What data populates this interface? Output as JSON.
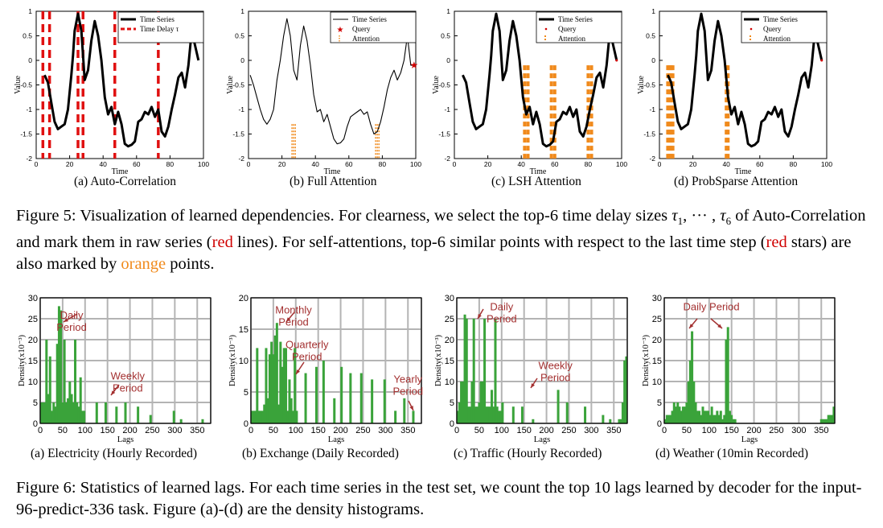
{
  "figure5": {
    "caption_label": "Figure 5:",
    "caption_p1": " Visualization of learned dependencies. For clearness, we select the top-6 time delay sizes ",
    "caption_tau_first": "τ",
    "caption_tau_first_sub": "1",
    "caption_dots": ", ··· , ",
    "caption_tau_last": "τ",
    "caption_tau_last_sub": "6",
    "caption_p2": " of Auto-Correlation and mark them in raw series (",
    "caption_red1": "red",
    "caption_p3": " lines). For self-attentions, top-6 similar points with respect to the last time step (",
    "caption_red2": "red",
    "caption_p4": " stars) are also marked by ",
    "caption_orange": "orange",
    "caption_p5": " points.",
    "subcaptions": [
      "(a) Auto-Correlation",
      "(b) Full Attention",
      "(c) LSH Attention",
      "(d) ProbSparse Attention"
    ]
  },
  "figure6": {
    "caption_label": "Figure 6:",
    "caption_text": " Statistics of learned lags. For each time series in the test set, we count the top 10 lags learned by decoder for the input-96-predict-336 task. Figure (a)-(d) are the density histograms.",
    "subcaptions": [
      "(a) Electricity (Hourly Recorded)",
      "(b) Exchange (Daily Recorded)",
      "(c) Traffic (Hourly Recorded)",
      "(d) Weather (10min Recorded)"
    ]
  },
  "chart_data": [
    {
      "type": "line",
      "panel": "(a) Auto-Correlation",
      "xlabel": "Time",
      "ylabel": "Value",
      "xlim": [
        0,
        100
      ],
      "ylim": [
        -2,
        1
      ],
      "xticks": [
        0,
        20,
        40,
        60,
        80,
        100
      ],
      "yticks": [
        1,
        0.5,
        0,
        -0.5,
        -1,
        -1.5,
        -2
      ],
      "legend_position": "top-right",
      "series": [
        {
          "name": "Time Series",
          "color": "#000000",
          "x": [
            5,
            7,
            9,
            11,
            13,
            15,
            17,
            19,
            21,
            22,
            23,
            25,
            27,
            29,
            31,
            33,
            35,
            37,
            39,
            41,
            43,
            45,
            47,
            49,
            51,
            53,
            55,
            57,
            59,
            61,
            63,
            65,
            67,
            69,
            71,
            73,
            75,
            77,
            79,
            81,
            83,
            85,
            87,
            89,
            91,
            93,
            95,
            97
          ],
          "y": [
            -0.3,
            -0.45,
            -0.85,
            -1.25,
            -1.4,
            -1.35,
            -1.3,
            -1.0,
            -0.3,
            0.1,
            0.6,
            0.95,
            0.6,
            -0.4,
            -0.2,
            0.4,
            0.8,
            0.5,
            0.0,
            -0.75,
            -1.1,
            -0.95,
            -1.3,
            -1.05,
            -1.3,
            -1.7,
            -1.75,
            -1.72,
            -1.65,
            -1.25,
            -1.2,
            -1.05,
            -1.1,
            -0.95,
            -1.15,
            -1.0,
            -1.45,
            -1.55,
            -1.35,
            -1.0,
            -0.7,
            -0.35,
            -0.25,
            -0.55,
            -0.1,
            0.6,
            0.3,
            0.0
          ]
        },
        {
          "name": "Time Delay τ",
          "color": "#e01010",
          "style": "dashed",
          "x_vertical": [
            4,
            8,
            25,
            28,
            47,
            73
          ]
        }
      ]
    },
    {
      "type": "line",
      "panel": "(b) Full Attention",
      "xlabel": "Time",
      "ylabel": "Value",
      "xlim": [
        0,
        100
      ],
      "ylim": [
        -2,
        1
      ],
      "xticks": [
        0,
        20,
        40,
        60,
        80,
        100
      ],
      "yticks": [
        1,
        0.5,
        0,
        -0.5,
        -1,
        -1.5,
        -2
      ],
      "legend_position": "top-right",
      "series": [
        {
          "name": "Time Series",
          "color": "#000000",
          "x": [
            1,
            3,
            5,
            7,
            9,
            11,
            13,
            15,
            17,
            19,
            21,
            23,
            25,
            27,
            29,
            31,
            33,
            35,
            37,
            39,
            41,
            43,
            45,
            47,
            49,
            51,
            53,
            55,
            57,
            59,
            61,
            63,
            65,
            67,
            69,
            71,
            73,
            75,
            77,
            79,
            81,
            83,
            85,
            87,
            89,
            91,
            93,
            95,
            97,
            99
          ],
          "y": [
            -0.3,
            -0.5,
            -0.75,
            -1.0,
            -1.2,
            -1.3,
            -1.2,
            -1.0,
            -0.4,
            0.0,
            0.5,
            0.85,
            0.5,
            -0.2,
            -0.4,
            0.3,
            0.7,
            0.4,
            -0.1,
            -0.7,
            -1.05,
            -1.0,
            -1.25,
            -1.1,
            -1.35,
            -1.6,
            -1.7,
            -1.68,
            -1.6,
            -1.35,
            -1.15,
            -1.1,
            -1.05,
            -1.0,
            -1.1,
            -1.05,
            -1.3,
            -1.5,
            -1.45,
            -1.25,
            -0.95,
            -0.6,
            -0.35,
            -0.2,
            -0.4,
            -0.25,
            0.0,
            0.5,
            -0.1,
            -0.1
          ]
        },
        {
          "name": "Query",
          "color": "#d00000",
          "marker": "star",
          "x": [
            99
          ],
          "y": [
            -0.1
          ]
        },
        {
          "name": "Attention",
          "color": "#f08a1c",
          "style": "dotted",
          "x_vertical": [
            26,
            27,
            28,
            76,
            77,
            78
          ]
        }
      ]
    },
    {
      "type": "line",
      "panel": "(c) LSH Attention",
      "xlabel": "Time",
      "ylabel": "Value",
      "xlim": [
        0,
        100
      ],
      "ylim": [
        -2,
        1
      ],
      "xticks": [
        0,
        20,
        40,
        60,
        80,
        100
      ],
      "yticks": [
        1,
        0.5,
        0,
        -0.5,
        -1,
        -1.5,
        -2
      ],
      "legend_position": "top-right",
      "series": [
        {
          "name": "Time Series",
          "color": "#000000",
          "x": [
            5,
            7,
            9,
            11,
            13,
            15,
            17,
            19,
            21,
            22,
            23,
            25,
            27,
            29,
            31,
            33,
            35,
            37,
            39,
            41,
            43,
            45,
            47,
            49,
            51,
            53,
            55,
            57,
            59,
            61,
            63,
            65,
            67,
            69,
            71,
            73,
            75,
            77,
            79,
            81,
            83,
            85,
            87,
            89,
            91,
            93,
            95,
            97
          ],
          "y": [
            -0.3,
            -0.45,
            -0.85,
            -1.25,
            -1.4,
            -1.35,
            -1.3,
            -1.0,
            -0.3,
            0.1,
            0.6,
            0.95,
            0.6,
            -0.4,
            -0.2,
            0.4,
            0.8,
            0.5,
            0.0,
            -0.75,
            -1.1,
            -0.95,
            -1.3,
            -1.05,
            -1.3,
            -1.7,
            -1.75,
            -1.72,
            -1.65,
            -1.25,
            -1.2,
            -1.05,
            -1.1,
            -0.95,
            -1.15,
            -1.0,
            -1.45,
            -1.55,
            -1.35,
            -1.0,
            -0.7,
            -0.35,
            -0.25,
            -0.55,
            -0.1,
            0.6,
            0.3,
            0.0
          ]
        },
        {
          "name": "Query",
          "color": "#d00000",
          "marker": "point",
          "x": [
            97
          ],
          "y": [
            0.0
          ]
        },
        {
          "name": "Attention",
          "color": "#f08a1c",
          "style": "dashed",
          "x_vertical": [
            42,
            44,
            58,
            60,
            80,
            82
          ]
        }
      ]
    },
    {
      "type": "line",
      "panel": "(d) ProbSparse Attention",
      "xlabel": "Time",
      "ylabel": "Value",
      "xlim": [
        0,
        100
      ],
      "ylim": [
        -2,
        1
      ],
      "xticks": [
        0,
        20,
        40,
        60,
        80,
        100
      ],
      "yticks": [
        1,
        0.5,
        0,
        -0.5,
        -1,
        -1.5,
        -2
      ],
      "legend_position": "top-right",
      "series": [
        {
          "name": "Time Series",
          "color": "#000000",
          "x": [
            5,
            7,
            9,
            11,
            13,
            15,
            17,
            19,
            21,
            22,
            23,
            25,
            27,
            29,
            31,
            33,
            35,
            37,
            39,
            41,
            43,
            45,
            47,
            49,
            51,
            53,
            55,
            57,
            59,
            61,
            63,
            65,
            67,
            69,
            71,
            73,
            75,
            77,
            79,
            81,
            83,
            85,
            87,
            89,
            91,
            93,
            95,
            97
          ],
          "y": [
            -0.3,
            -0.45,
            -0.85,
            -1.25,
            -1.4,
            -1.35,
            -1.3,
            -1.0,
            -0.3,
            0.1,
            0.6,
            0.95,
            0.6,
            -0.4,
            -0.2,
            0.4,
            0.8,
            0.5,
            0.0,
            -0.75,
            -1.1,
            -0.95,
            -1.3,
            -1.05,
            -1.3,
            -1.7,
            -1.75,
            -1.72,
            -1.65,
            -1.25,
            -1.2,
            -1.05,
            -1.1,
            -0.95,
            -1.15,
            -1.0,
            -1.45,
            -1.55,
            -1.35,
            -1.0,
            -0.7,
            -0.35,
            -0.25,
            -0.55,
            -0.1,
            0.6,
            0.3,
            0.0
          ]
        },
        {
          "name": "Query",
          "color": "#d00000",
          "marker": "point",
          "x": [
            97
          ],
          "y": [
            0.0
          ]
        },
        {
          "name": "Attention",
          "color": "#f08a1c",
          "style": "dashed",
          "x_vertical": [
            5,
            6,
            7,
            8,
            40,
            41
          ]
        }
      ]
    },
    {
      "type": "bar",
      "panel": "(a) Electricity (Hourly Recorded)",
      "xlabel": "Lags",
      "ylabel": "Density(x10⁻³)",
      "xlim": [
        0,
        380
      ],
      "ylim": [
        0,
        30
      ],
      "xticks": [
        0,
        50,
        100,
        150,
        200,
        250,
        300,
        350
      ],
      "yticks": [
        0,
        5,
        10,
        15,
        20,
        25,
        30
      ],
      "grid": true,
      "color": "#3aa33a",
      "annotations": [
        {
          "text": [
            "Daily",
            "Period"
          ],
          "x": 70,
          "y": 25
        },
        {
          "text": [
            "Weekly",
            "Period"
          ],
          "x": 195,
          "y": 10.5
        }
      ],
      "x": [
        2,
        6,
        10,
        14,
        18,
        22,
        26,
        30,
        34,
        38,
        42,
        46,
        50,
        54,
        58,
        62,
        66,
        70,
        74,
        78,
        82,
        86,
        90,
        94,
        98,
        126,
        146,
        170,
        190,
        218,
        246,
        298,
        314,
        362
      ],
      "values": [
        5,
        5,
        5,
        20,
        7,
        16,
        3,
        5,
        4,
        19,
        28,
        27,
        5,
        20,
        5,
        6,
        10,
        7,
        5,
        20,
        5,
        4,
        11,
        3,
        3,
        5,
        5,
        4,
        5,
        4,
        2,
        3,
        1,
        1
      ]
    },
    {
      "type": "bar",
      "panel": "(b) Exchange (Daily Recorded)",
      "xlabel": "Lags",
      "ylabel": "Density(x10⁻³)",
      "xlim": [
        0,
        380
      ],
      "ylim": [
        0,
        20
      ],
      "xticks": [
        0,
        50,
        100,
        150,
        200,
        250,
        300,
        350
      ],
      "yticks": [
        0,
        5,
        10,
        15,
        20
      ],
      "grid": true,
      "color": "#3aa33a",
      "annotations": [
        {
          "text": [
            "Monthly",
            "Period"
          ],
          "x": 95,
          "y": 17.5
        },
        {
          "text": [
            "Quarterly",
            "Period"
          ],
          "x": 125,
          "y": 12
        },
        {
          "text": [
            "Yearly",
            "Period"
          ],
          "x": 350,
          "y": 6.5
        }
      ],
      "x": [
        2,
        6,
        10,
        14,
        18,
        22,
        26,
        30,
        34,
        38,
        42,
        46,
        50,
        54,
        58,
        62,
        66,
        70,
        74,
        78,
        82,
        86,
        90,
        94,
        98,
        102,
        122,
        146,
        162,
        186,
        202,
        222,
        246,
        270,
        298,
        322,
        342,
        362
      ],
      "values": [
        2,
        2,
        2,
        12,
        2,
        2,
        2,
        3,
        12,
        4,
        11,
        13,
        11,
        14,
        16,
        3,
        13,
        9,
        12,
        12,
        2,
        7,
        4,
        2,
        12,
        2,
        8,
        9,
        10,
        4,
        9,
        8,
        8,
        7,
        7,
        2,
        4,
        2
      ]
    },
    {
      "type": "bar",
      "panel": "(c) Traffic (Hourly Recorded)",
      "xlabel": "Lags",
      "ylabel": "Density(x10⁻³)",
      "xlim": [
        0,
        380
      ],
      "ylim": [
        0,
        30
      ],
      "xticks": [
        0,
        50,
        100,
        150,
        200,
        250,
        300,
        350
      ],
      "yticks": [
        0,
        5,
        10,
        15,
        20,
        25,
        30
      ],
      "grid": true,
      "color": "#3aa33a",
      "annotations": [
        {
          "text": [
            "Daily",
            "Period"
          ],
          "x": 100,
          "y": 27
        },
        {
          "text": [
            "Weekly",
            "Period"
          ],
          "x": 220,
          "y": 13
        }
      ],
      "x": [
        2,
        6,
        10,
        14,
        18,
        22,
        26,
        30,
        34,
        38,
        42,
        46,
        50,
        54,
        58,
        62,
        66,
        70,
        74,
        78,
        82,
        86,
        90,
        94,
        98,
        102,
        126,
        146,
        170,
        226,
        246,
        286,
        326,
        342,
        362,
        366,
        370,
        374,
        378
      ],
      "values": [
        3,
        5,
        10,
        10,
        26,
        25,
        4,
        4,
        10,
        25,
        4,
        4,
        5,
        10,
        10,
        25,
        4,
        4,
        4,
        8,
        4,
        25,
        4,
        3,
        3,
        5,
        4,
        4,
        1,
        8,
        5,
        4,
        2,
        1,
        1,
        1,
        5,
        15,
        16
      ]
    },
    {
      "type": "bar",
      "panel": "(d) Weather (10min Recorded)",
      "xlabel": "Lags",
      "ylabel": "Density(x10⁻³)",
      "xlim": [
        0,
        380
      ],
      "ylim": [
        0,
        30
      ],
      "xticks": [
        0,
        50,
        100,
        150,
        200,
        250,
        300,
        350
      ],
      "yticks": [
        0,
        5,
        10,
        15,
        20,
        25,
        30
      ],
      "grid": true,
      "color": "#3aa33a",
      "annotations": [
        {
          "text": [
            "Daily Period"
          ],
          "x": 105,
          "y": 27
        }
      ],
      "x": [
        2,
        6,
        10,
        14,
        18,
        22,
        26,
        30,
        34,
        38,
        42,
        46,
        50,
        54,
        58,
        62,
        66,
        70,
        74,
        78,
        82,
        86,
        90,
        94,
        98,
        102,
        106,
        110,
        114,
        118,
        122,
        126,
        130,
        134,
        138,
        142,
        146,
        150,
        154,
        158,
        350,
        354,
        358,
        362,
        366,
        370,
        374,
        378
      ],
      "values": [
        1,
        2,
        2,
        2,
        3,
        5,
        4,
        5,
        4,
        3,
        4,
        4,
        5,
        10,
        15,
        22,
        10,
        5,
        3,
        3,
        2,
        4,
        3,
        3,
        3,
        2,
        4,
        2,
        2,
        3,
        2,
        3,
        1,
        2,
        20,
        23,
        3,
        2,
        1,
        1,
        1,
        1,
        1,
        1,
        2,
        2,
        2,
        4
      ]
    }
  ]
}
